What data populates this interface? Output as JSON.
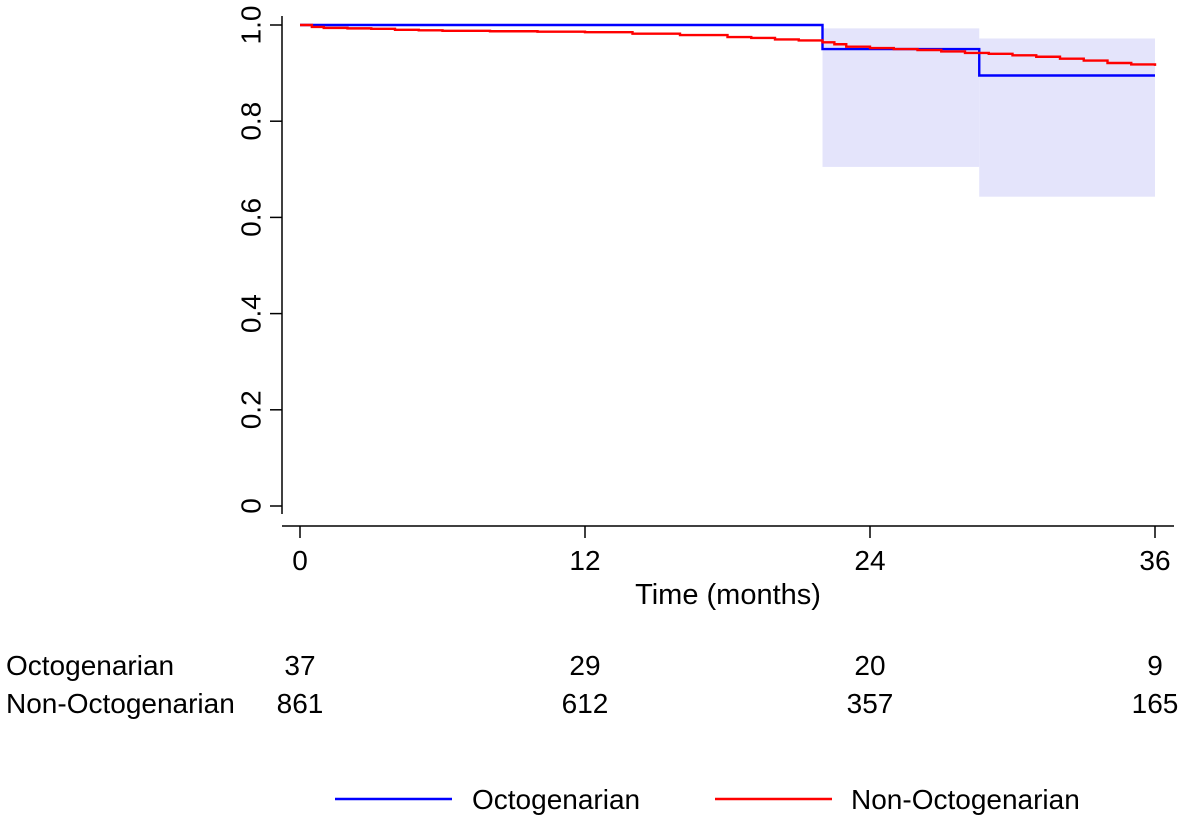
{
  "chart_data": {
    "type": "line",
    "title": "",
    "xlabel": "Time (months)",
    "ylabel": "",
    "xlim": [
      0,
      36
    ],
    "ylim": [
      0,
      1
    ],
    "x_ticks": [
      0,
      12,
      24,
      36
    ],
    "x_tick_labels": [
      "0",
      "12",
      "24",
      "36"
    ],
    "y_ticks": [
      0,
      0.2,
      0.4,
      0.6,
      0.8,
      1.0
    ],
    "y_tick_labels": [
      "0",
      "0.2",
      "0.4",
      "0.6",
      "0.8",
      "1.0"
    ],
    "grid": false,
    "legend_position": "bottom",
    "series": [
      {
        "name": "Octogenarian",
        "color": "#0000ff",
        "step": true,
        "x": [
          0,
          22,
          22,
          28.6,
          28.6,
          36
        ],
        "y": [
          1.0,
          1.0,
          0.95,
          0.95,
          0.895,
          0.895
        ],
        "ci": {
          "color": "#e4e4fb",
          "segments": [
            {
              "x_start": 22,
              "x_end": 28.6,
              "lower": 0.705,
              "upper": 0.993
            },
            {
              "x_start": 28.6,
              "x_end": 36,
              "lower": 0.643,
              "upper": 0.972
            }
          ]
        }
      },
      {
        "name": "Non-Octogenarian",
        "color": "#ff0000",
        "step": true,
        "x": [
          0,
          0.5,
          1,
          2,
          3,
          4,
          5,
          6,
          8,
          10,
          12,
          14,
          16,
          18,
          19,
          20,
          21,
          22,
          22.5,
          23,
          24,
          25,
          26,
          27,
          28,
          29,
          30,
          31,
          32,
          33,
          34,
          35,
          36
        ],
        "y": [
          1.0,
          0.996,
          0.994,
          0.993,
          0.992,
          0.99,
          0.989,
          0.988,
          0.987,
          0.986,
          0.985,
          0.982,
          0.979,
          0.975,
          0.973,
          0.97,
          0.968,
          0.964,
          0.96,
          0.955,
          0.952,
          0.95,
          0.948,
          0.945,
          0.942,
          0.94,
          0.937,
          0.934,
          0.93,
          0.926,
          0.921,
          0.918,
          0.915
        ]
      }
    ],
    "risk_table": {
      "times": [
        0,
        12,
        24,
        36
      ],
      "rows": [
        {
          "label": "Octogenarian",
          "counts": [
            "37",
            "29",
            "20",
            "9"
          ]
        },
        {
          "label": "Non-Octogenarian",
          "counts": [
            "861",
            "612",
            "357",
            "165"
          ]
        }
      ]
    }
  }
}
